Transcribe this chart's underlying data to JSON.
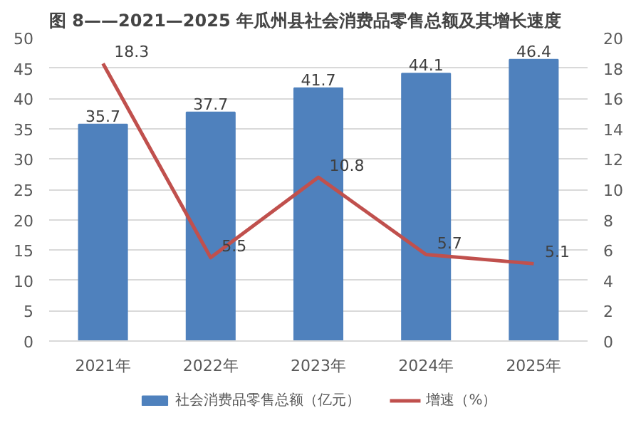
{
  "chart_data": {
    "type": "bar",
    "title": "图 8——2021—2025 年瓜州县社会消费品零售总额及其增长速度",
    "categories": [
      "2021年",
      "2022年",
      "2023年",
      "2024年",
      "2025年"
    ],
    "series": [
      {
        "name": "社会消费品零售总额（亿元）",
        "color": "#4f81bd",
        "values": [
          35.7,
          37.7,
          41.7,
          44.1,
          46.4
        ]
      },
      {
        "name": "增速（%）",
        "type": "line",
        "axis": "y2",
        "color": "#c0504d",
        "values": [
          18.3,
          5.5,
          10.8,
          5.7,
          5.1
        ]
      }
    ],
    "ylim": [
      0,
      50
    ],
    "yticks": [
      0,
      5,
      10,
      15,
      20,
      25,
      30,
      35,
      40,
      45,
      50
    ],
    "y2lim": [
      0,
      20
    ],
    "y2ticks": [
      0,
      2,
      4,
      6,
      8,
      10,
      12,
      14,
      16,
      18,
      20
    ],
    "grid": "y",
    "legend": "bottom",
    "data_labels": true
  }
}
